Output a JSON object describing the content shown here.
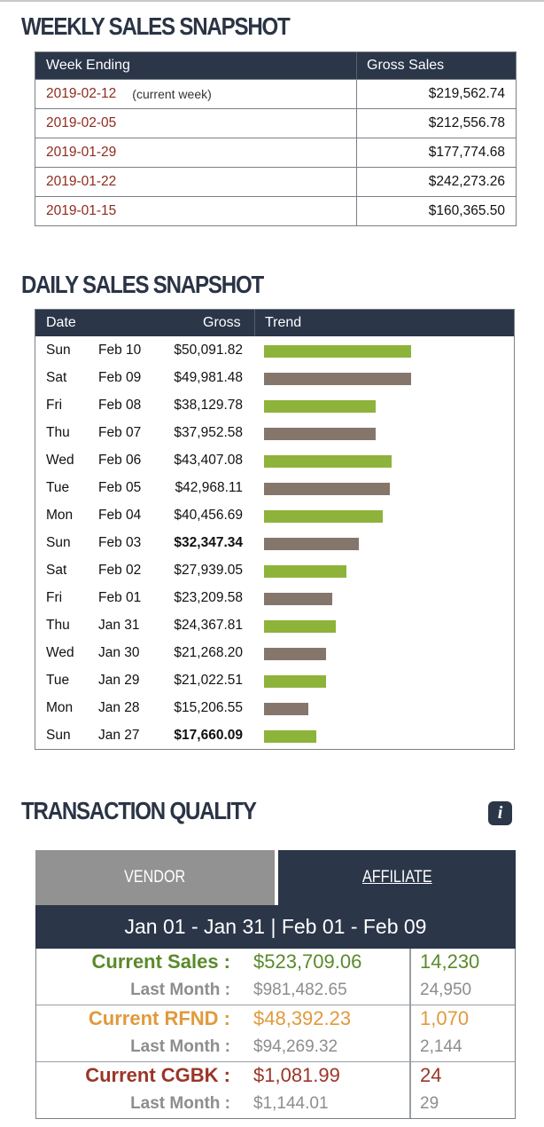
{
  "weekly": {
    "title": "WEEKLY SALES SNAPSHOT",
    "headers": [
      "Week Ending",
      "Gross Sales"
    ],
    "rows": [
      {
        "week": "2019-02-12",
        "note": "(current week)",
        "gross": "$219,562.74"
      },
      {
        "week": "2019-02-05",
        "note": "",
        "gross": "$212,556.78"
      },
      {
        "week": "2019-01-29",
        "note": "",
        "gross": "$177,774.68"
      },
      {
        "week": "2019-01-22",
        "note": "",
        "gross": "$242,273.26"
      },
      {
        "week": "2019-01-15",
        "note": "",
        "gross": "$160,365.50"
      }
    ]
  },
  "daily": {
    "title": "DAILY SALES SNAPSHOT",
    "headers": [
      "Date",
      "Gross",
      "Trend"
    ],
    "rows": [
      {
        "day": "Sun",
        "date": "Feb 10",
        "gross": "$50,091.82",
        "value": 50091.82,
        "bold": false,
        "color": "#8db33a"
      },
      {
        "day": "Sat",
        "date": "Feb 09",
        "gross": "$49,981.48",
        "value": 49981.48,
        "bold": false,
        "color": "#85766c"
      },
      {
        "day": "Fri",
        "date": "Feb 08",
        "gross": "$38,129.78",
        "value": 38129.78,
        "bold": false,
        "color": "#8db33a"
      },
      {
        "day": "Thu",
        "date": "Feb 07",
        "gross": "$37,952.58",
        "value": 37952.58,
        "bold": false,
        "color": "#85766c"
      },
      {
        "day": "Wed",
        "date": "Feb 06",
        "gross": "$43,407.08",
        "value": 43407.08,
        "bold": false,
        "color": "#8db33a"
      },
      {
        "day": "Tue",
        "date": "Feb 05",
        "gross": "$42,968.11",
        "value": 42968.11,
        "bold": false,
        "color": "#85766c"
      },
      {
        "day": "Mon",
        "date": "Feb 04",
        "gross": "$40,456.69",
        "value": 40456.69,
        "bold": false,
        "color": "#8db33a"
      },
      {
        "day": "Sun",
        "date": "Feb 03",
        "gross": "$32,347.34",
        "value": 32347.34,
        "bold": true,
        "color": "#85766c"
      },
      {
        "day": "Sat",
        "date": "Feb 02",
        "gross": "$27,939.05",
        "value": 27939.05,
        "bold": false,
        "color": "#8db33a"
      },
      {
        "day": "Fri",
        "date": "Feb 01",
        "gross": "$23,209.58",
        "value": 23209.58,
        "bold": false,
        "color": "#85766c"
      },
      {
        "day": "Thu",
        "date": "Jan 31",
        "gross": "$24,367.81",
        "value": 24367.81,
        "bold": false,
        "color": "#8db33a"
      },
      {
        "day": "Wed",
        "date": "Jan 30",
        "gross": "$21,268.20",
        "value": 21268.2,
        "bold": false,
        "color": "#85766c"
      },
      {
        "day": "Tue",
        "date": "Jan 29",
        "gross": "$21,022.51",
        "value": 21022.51,
        "bold": false,
        "color": "#8db33a"
      },
      {
        "day": "Mon",
        "date": "Jan 28",
        "gross": "$15,206.55",
        "value": 15206.55,
        "bold": false,
        "color": "#85766c"
      },
      {
        "day": "Sun",
        "date": "Jan 27",
        "gross": "$17,660.09",
        "value": 17660.09,
        "bold": true,
        "color": "#8db33a"
      }
    ]
  },
  "transaction": {
    "title": "TRANSACTION QUALITY",
    "info_icon": "info-icon",
    "tabs": {
      "vendor": "VENDOR",
      "affiliate": "AFFILIATE"
    },
    "range": "Jan 01 - Jan 31 | Feb 01 - Feb 09",
    "groups": [
      {
        "label": "Current Sales :",
        "value": "$523,709.06",
        "count": "14,230",
        "lm_label": "Last Month :",
        "lm_value": "$981,482.65",
        "lm_count": "24,950",
        "color": "#5a8a2a"
      },
      {
        "label": "Current RFND :",
        "value": "$48,392.23",
        "count": "1,070",
        "lm_label": "Last Month :",
        "lm_value": "$94,269.32",
        "lm_count": "2,144",
        "color": "#e09a3c"
      },
      {
        "label": "Current CGBK :",
        "value": "$1,081.99",
        "count": "24",
        "lm_label": "Last Month :",
        "lm_value": "$1,144.01",
        "lm_count": "29",
        "color": "#9b3527"
      }
    ]
  }
}
